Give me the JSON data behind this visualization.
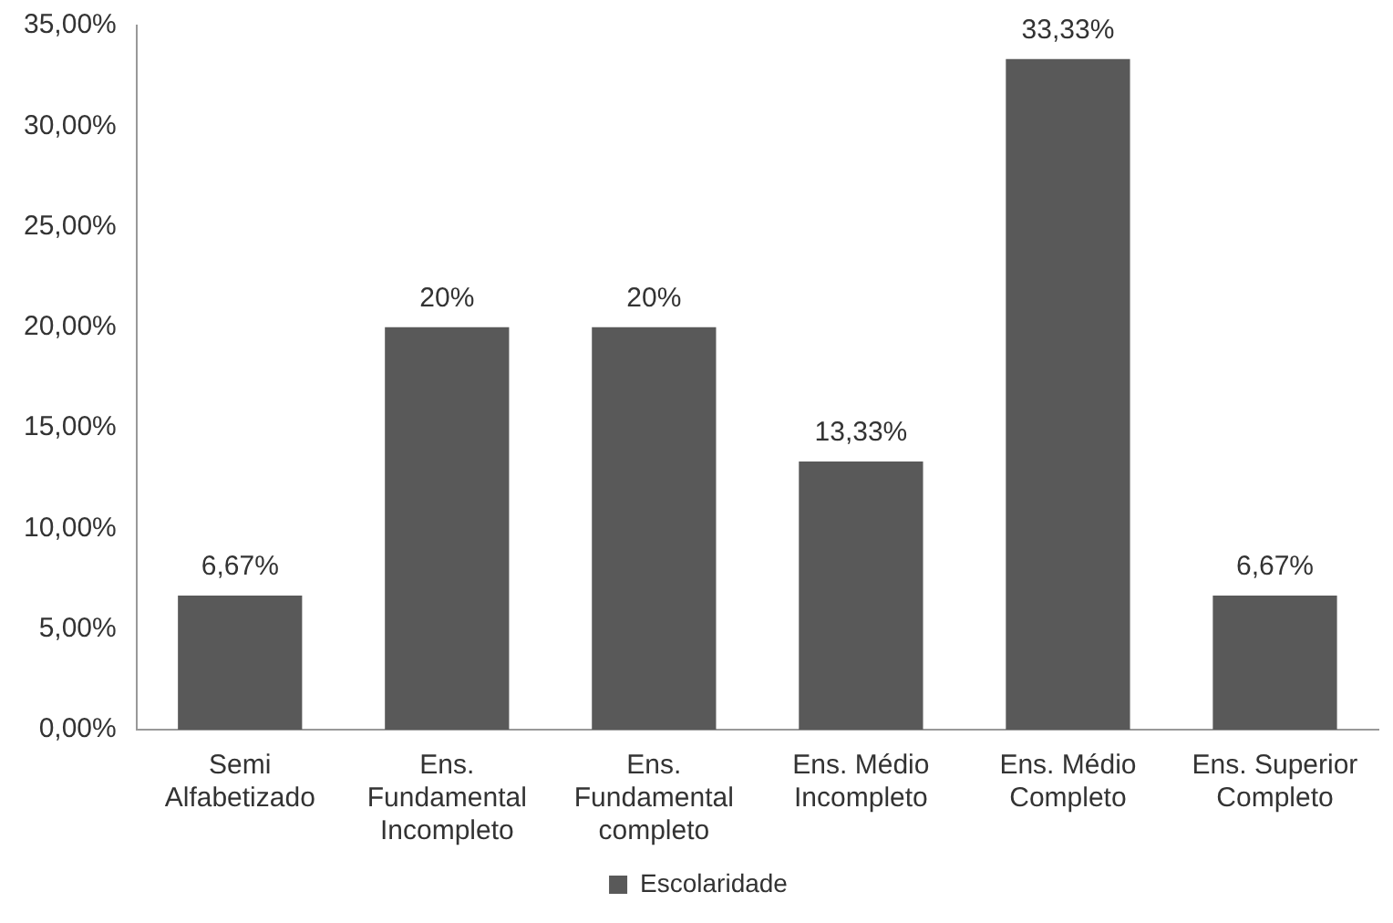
{
  "chart_data": {
    "type": "bar",
    "categories": [
      "Semi Alfabetizado",
      "Ens. Fundamental Incompleto",
      "Ens. Fundamental completo",
      "Ens. Médio Incompleto",
      "Ens. Médio Completo",
      "Ens. Superior Completo"
    ],
    "series": [
      {
        "name": "Escolaridade",
        "color": "#595959",
        "values": [
          6.67,
          20,
          20,
          13.33,
          33.33,
          6.67
        ],
        "value_labels": [
          "6,67%",
          "20%",
          "20%",
          "13,33%",
          "33,33%",
          "6,67%"
        ]
      }
    ],
    "ylim": [
      0,
      35
    ],
    "yticks": [
      {
        "value": 0,
        "label": "0,00%"
      },
      {
        "value": 5,
        "label": "5,00%"
      },
      {
        "value": 10,
        "label": "10,00%"
      },
      {
        "value": 15,
        "label": "15,00%"
      },
      {
        "value": 20,
        "label": "20,00%"
      },
      {
        "value": 25,
        "label": "25,00%"
      },
      {
        "value": 30,
        "label": "30,00%"
      },
      {
        "value": 35,
        "label": "35,00%"
      }
    ],
    "grid": false,
    "legend": "bottom"
  }
}
